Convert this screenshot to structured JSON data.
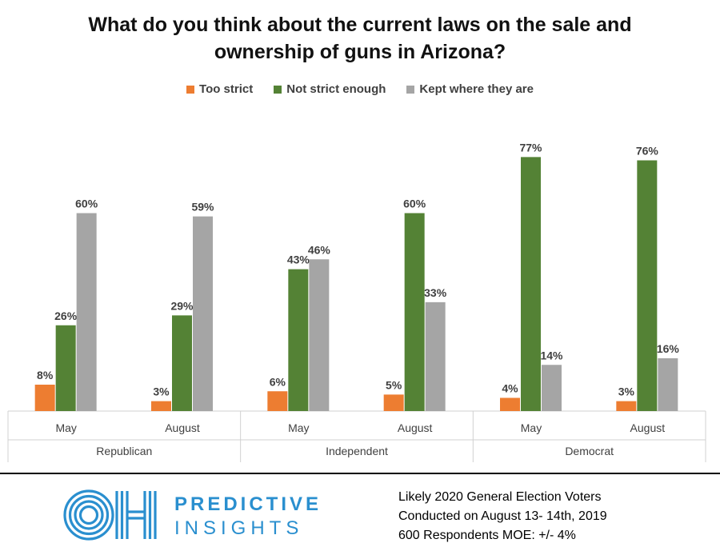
{
  "chart_data": {
    "type": "bar",
    "title": "What do you think about the current laws on the sale and ownership of guns in Arizona?",
    "title_lines": [
      "What do you think about the current laws on the sale and",
      "ownership of guns in Arizona?"
    ],
    "groups": [
      {
        "name": "Republican",
        "categories": [
          "May",
          "August"
        ]
      },
      {
        "name": "Independent",
        "categories": [
          "May",
          "August"
        ]
      },
      {
        "name": "Democrat",
        "categories": [
          "May",
          "August"
        ]
      }
    ],
    "series": [
      {
        "name": "Too strict",
        "color": "#ED7D31",
        "values": [
          8,
          3,
          6,
          5,
          4,
          3
        ]
      },
      {
        "name": "Not strict enough",
        "color": "#548235",
        "values": [
          26,
          29,
          43,
          60,
          77,
          76
        ]
      },
      {
        "name": "Kept where they are",
        "color": "#A5A5A5",
        "values": [
          60,
          59,
          46,
          33,
          14,
          16
        ]
      }
    ],
    "value_suffix": "%",
    "ylim": [
      0,
      80
    ],
    "grid": false,
    "legend_position": "top"
  },
  "footer": {
    "brand_line1": "PREDICTIVE",
    "brand_line2": "INSIGHTS",
    "logo_text": "OH",
    "note_lines": [
      "Likely 2020 General Election Voters",
      "Conducted on August 13- 14th, 2019",
      "600 Respondents  MOE: +/- 4%"
    ]
  }
}
